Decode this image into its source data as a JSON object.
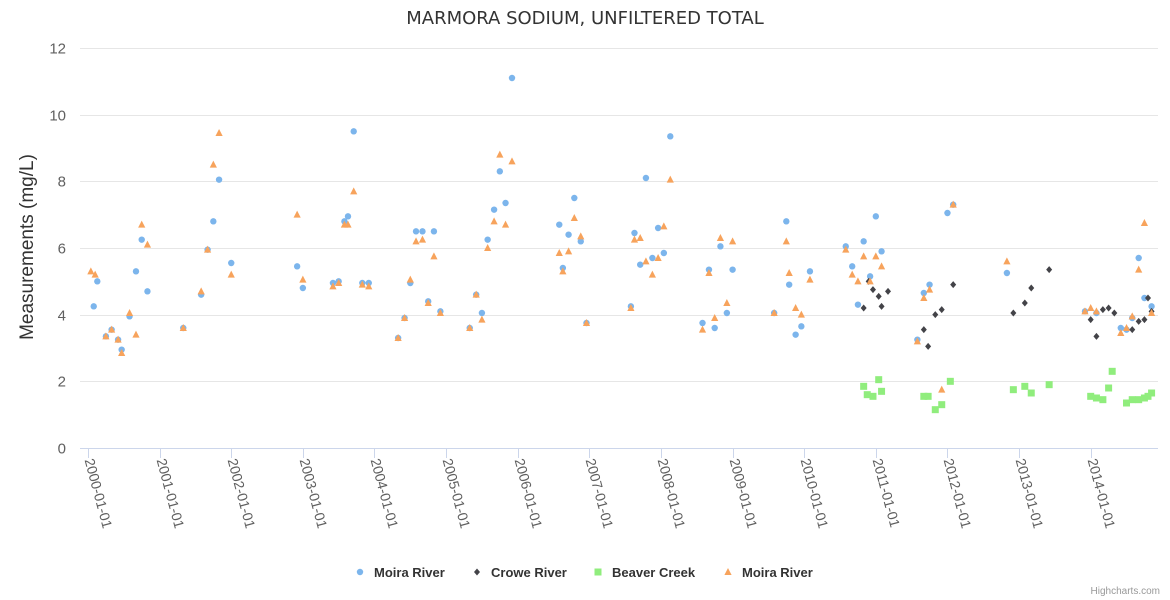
{
  "chart_data": {
    "type": "scatter",
    "title": "MARMORA SODIUM, UNFILTERED TOTAL",
    "xlabel": "",
    "ylabel": "Measurements (mg/L)",
    "ylim": [
      0,
      12
    ],
    "yticks": [
      0,
      2,
      4,
      6,
      8,
      10,
      12
    ],
    "xlim": [
      2000.0,
      2014.8
    ],
    "xtick_labels": [
      "2000-01-01",
      "2001-01-01",
      "2002-01-01",
      "2003-01-01",
      "2004-01-01",
      "2005-01-01",
      "2006-01-01",
      "2007-01-01",
      "2008-01-01",
      "2009-01-01",
      "2010-01-01",
      "2011-01-01",
      "2012-01-01",
      "2013-01-01",
      "2014-01-01"
    ],
    "grid": true,
    "legend_position": "bottom-center",
    "credits": "Highcharts.com",
    "series": [
      {
        "name": "Moira River",
        "marker": "circle",
        "color": "#7cb5ec",
        "points": [
          [
            2000.08,
            4.25
          ],
          [
            2000.13,
            5.0
          ],
          [
            2000.25,
            3.35
          ],
          [
            2000.33,
            3.55
          ],
          [
            2000.42,
            3.25
          ],
          [
            2000.47,
            2.95
          ],
          [
            2000.58,
            3.95
          ],
          [
            2000.67,
            5.3
          ],
          [
            2000.75,
            6.25
          ],
          [
            2000.83,
            4.7
          ],
          [
            2001.33,
            3.6
          ],
          [
            2001.58,
            4.6
          ],
          [
            2001.67,
            5.95
          ],
          [
            2001.75,
            6.8
          ],
          [
            2001.83,
            8.05
          ],
          [
            2002.0,
            5.55
          ],
          [
            2002.92,
            5.45
          ],
          [
            2003.0,
            4.8
          ],
          [
            2003.42,
            4.95
          ],
          [
            2003.5,
            5.0
          ],
          [
            2003.58,
            6.8
          ],
          [
            2003.63,
            6.95
          ],
          [
            2003.71,
            9.5
          ],
          [
            2003.83,
            4.95
          ],
          [
            2003.92,
            4.95
          ],
          [
            2004.33,
            3.3
          ],
          [
            2004.42,
            3.9
          ],
          [
            2004.5,
            4.95
          ],
          [
            2004.58,
            6.5
          ],
          [
            2004.67,
            6.5
          ],
          [
            2004.75,
            4.4
          ],
          [
            2004.83,
            6.5
          ],
          [
            2004.92,
            4.1
          ],
          [
            2005.33,
            3.6
          ],
          [
            2005.42,
            4.6
          ],
          [
            2005.5,
            4.05
          ],
          [
            2005.58,
            6.25
          ],
          [
            2005.67,
            7.15
          ],
          [
            2005.75,
            8.3
          ],
          [
            2005.83,
            7.35
          ],
          [
            2005.92,
            11.1
          ],
          [
            2006.58,
            6.7
          ],
          [
            2006.63,
            5.4
          ],
          [
            2006.71,
            6.4
          ],
          [
            2006.79,
            7.5
          ],
          [
            2006.88,
            6.2
          ],
          [
            2006.96,
            3.75
          ],
          [
            2007.58,
            4.25
          ],
          [
            2007.63,
            6.45
          ],
          [
            2007.71,
            5.5
          ],
          [
            2007.79,
            8.1
          ],
          [
            2007.88,
            5.7
          ],
          [
            2007.96,
            6.6
          ],
          [
            2008.04,
            5.85
          ],
          [
            2008.13,
            9.35
          ],
          [
            2008.58,
            3.75
          ],
          [
            2008.67,
            5.35
          ],
          [
            2008.75,
            3.6
          ],
          [
            2008.83,
            6.05
          ],
          [
            2008.92,
            4.05
          ],
          [
            2009.0,
            5.35
          ],
          [
            2009.58,
            4.05
          ],
          [
            2009.75,
            6.8
          ],
          [
            2009.79,
            4.9
          ],
          [
            2009.88,
            3.4
          ],
          [
            2009.96,
            3.65
          ],
          [
            2010.08,
            5.3
          ],
          [
            2010.58,
            6.05
          ],
          [
            2010.67,
            5.45
          ],
          [
            2010.75,
            4.3
          ],
          [
            2010.83,
            6.2
          ],
          [
            2010.92,
            5.15
          ],
          [
            2011.0,
            6.95
          ],
          [
            2011.08,
            5.9
          ],
          [
            2011.58,
            3.25
          ],
          [
            2011.67,
            4.65
          ],
          [
            2011.75,
            4.9
          ],
          [
            2012.0,
            7.05
          ],
          [
            2012.08,
            7.3
          ],
          [
            2012.83,
            5.25
          ],
          [
            2013.92,
            4.1
          ],
          [
            2014.08,
            4.05
          ],
          [
            2014.42,
            3.6
          ],
          [
            2014.5,
            3.55
          ],
          [
            2014.58,
            3.9
          ],
          [
            2014.67,
            5.7
          ],
          [
            2014.75,
            4.5
          ],
          [
            2014.85,
            4.25
          ]
        ]
      },
      {
        "name": "Crowe River",
        "marker": "diamond",
        "color": "#434348",
        "points": [
          [
            2010.83,
            4.2
          ],
          [
            2010.9,
            5.0
          ],
          [
            2010.96,
            4.75
          ],
          [
            2011.04,
            4.55
          ],
          [
            2011.08,
            4.25
          ],
          [
            2011.17,
            4.7
          ],
          [
            2011.67,
            3.55
          ],
          [
            2011.73,
            3.05
          ],
          [
            2011.83,
            4.0
          ],
          [
            2011.92,
            4.15
          ],
          [
            2012.08,
            4.9
          ],
          [
            2012.92,
            4.05
          ],
          [
            2013.08,
            4.35
          ],
          [
            2013.17,
            4.8
          ],
          [
            2013.42,
            5.35
          ],
          [
            2014.0,
            3.85
          ],
          [
            2014.08,
            3.35
          ],
          [
            2014.17,
            4.15
          ],
          [
            2014.25,
            4.2
          ],
          [
            2014.33,
            4.05
          ],
          [
            2014.58,
            3.55
          ],
          [
            2014.67,
            3.8
          ],
          [
            2014.75,
            3.85
          ],
          [
            2014.8,
            4.5
          ],
          [
            2014.85,
            4.1
          ]
        ]
      },
      {
        "name": "Beaver Creek",
        "marker": "square",
        "color": "#90ed7d",
        "points": [
          [
            2010.83,
            1.85
          ],
          [
            2010.88,
            1.6
          ],
          [
            2010.96,
            1.55
          ],
          [
            2011.04,
            2.05
          ],
          [
            2011.08,
            1.7
          ],
          [
            2011.67,
            1.55
          ],
          [
            2011.73,
            1.55
          ],
          [
            2011.83,
            1.15
          ],
          [
            2011.92,
            1.3
          ],
          [
            2012.04,
            2.0
          ],
          [
            2012.92,
            1.75
          ],
          [
            2013.08,
            1.85
          ],
          [
            2013.17,
            1.65
          ],
          [
            2013.42,
            1.9
          ],
          [
            2014.0,
            1.55
          ],
          [
            2014.08,
            1.5
          ],
          [
            2014.17,
            1.45
          ],
          [
            2014.25,
            1.8
          ],
          [
            2014.3,
            2.3
          ],
          [
            2014.5,
            1.35
          ],
          [
            2014.58,
            1.45
          ],
          [
            2014.67,
            1.45
          ],
          [
            2014.75,
            1.5
          ],
          [
            2014.8,
            1.55
          ],
          [
            2014.85,
            1.65
          ]
        ]
      },
      {
        "name": "Moira River",
        "marker": "triangle",
        "color": "#f7a35c",
        "points": [
          [
            2000.04,
            5.3
          ],
          [
            2000.1,
            5.2
          ],
          [
            2000.25,
            3.35
          ],
          [
            2000.33,
            3.55
          ],
          [
            2000.42,
            3.25
          ],
          [
            2000.47,
            2.85
          ],
          [
            2000.58,
            4.05
          ],
          [
            2000.67,
            3.4
          ],
          [
            2000.75,
            6.7
          ],
          [
            2000.83,
            6.1
          ],
          [
            2001.33,
            3.6
          ],
          [
            2001.58,
            4.7
          ],
          [
            2001.67,
            5.95
          ],
          [
            2001.75,
            8.5
          ],
          [
            2001.83,
            9.45
          ],
          [
            2002.0,
            5.2
          ],
          [
            2002.92,
            7.0
          ],
          [
            2003.0,
            5.05
          ],
          [
            2003.42,
            4.85
          ],
          [
            2003.5,
            4.95
          ],
          [
            2003.58,
            6.7
          ],
          [
            2003.63,
            6.7
          ],
          [
            2003.71,
            7.7
          ],
          [
            2003.83,
            4.9
          ],
          [
            2003.92,
            4.85
          ],
          [
            2004.33,
            3.3
          ],
          [
            2004.42,
            3.9
          ],
          [
            2004.5,
            5.05
          ],
          [
            2004.58,
            6.2
          ],
          [
            2004.67,
            6.25
          ],
          [
            2004.75,
            4.35
          ],
          [
            2004.83,
            5.75
          ],
          [
            2004.92,
            4.05
          ],
          [
            2005.33,
            3.6
          ],
          [
            2005.42,
            4.6
          ],
          [
            2005.5,
            3.85
          ],
          [
            2005.58,
            6.0
          ],
          [
            2005.67,
            6.8
          ],
          [
            2005.75,
            8.8
          ],
          [
            2005.83,
            6.7
          ],
          [
            2005.92,
            8.6
          ],
          [
            2006.58,
            5.85
          ],
          [
            2006.63,
            5.3
          ],
          [
            2006.71,
            5.9
          ],
          [
            2006.79,
            6.9
          ],
          [
            2006.88,
            6.35
          ],
          [
            2006.96,
            3.75
          ],
          [
            2007.58,
            4.2
          ],
          [
            2007.63,
            6.25
          ],
          [
            2007.71,
            6.3
          ],
          [
            2007.79,
            5.6
          ],
          [
            2007.88,
            5.2
          ],
          [
            2007.96,
            5.7
          ],
          [
            2008.04,
            6.65
          ],
          [
            2008.13,
            8.05
          ],
          [
            2008.58,
            3.55
          ],
          [
            2008.67,
            5.25
          ],
          [
            2008.75,
            3.9
          ],
          [
            2008.83,
            6.3
          ],
          [
            2008.92,
            4.35
          ],
          [
            2009.0,
            6.2
          ],
          [
            2009.58,
            4.05
          ],
          [
            2009.75,
            6.2
          ],
          [
            2009.79,
            5.25
          ],
          [
            2009.88,
            4.2
          ],
          [
            2009.96,
            4.0
          ],
          [
            2010.08,
            5.05
          ],
          [
            2010.58,
            5.95
          ],
          [
            2010.67,
            5.2
          ],
          [
            2010.75,
            5.0
          ],
          [
            2010.83,
            5.75
          ],
          [
            2010.92,
            5.0
          ],
          [
            2011.0,
            5.75
          ],
          [
            2011.08,
            5.45
          ],
          [
            2011.58,
            3.2
          ],
          [
            2011.67,
            4.5
          ],
          [
            2011.75,
            4.75
          ],
          [
            2011.92,
            1.75
          ],
          [
            2012.08,
            7.3
          ],
          [
            2012.83,
            5.6
          ],
          [
            2013.92,
            4.1
          ],
          [
            2014.0,
            4.2
          ],
          [
            2014.08,
            4.1
          ],
          [
            2014.42,
            3.45
          ],
          [
            2014.5,
            3.6
          ],
          [
            2014.58,
            3.95
          ],
          [
            2014.67,
            5.35
          ],
          [
            2014.75,
            6.75
          ],
          [
            2014.85,
            4.05
          ]
        ]
      }
    ]
  }
}
